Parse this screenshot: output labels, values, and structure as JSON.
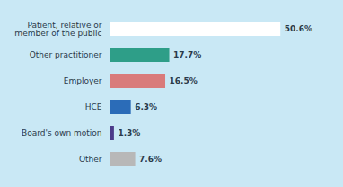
{
  "chart_data": {
    "type": "bar",
    "orientation": "horizontal",
    "categories": [
      "Patient, relative or\nmember of the public",
      "Other practitioner",
      "Employer",
      "HCE",
      "Board's own motion",
      "Other"
    ],
    "values": [
      50.6,
      17.7,
      16.5,
      6.3,
      1.3,
      7.6
    ],
    "value_labels": [
      "50.6%",
      "17.7%",
      "16.5%",
      "6.3%",
      "1.3%",
      "7.6%"
    ],
    "colors": [
      "#ffffff",
      "#2e9e88",
      "#d97b7b",
      "#2b6cb8",
      "#4b3a8a",
      "#b8b8b8"
    ],
    "xlim": [
      0,
      58
    ],
    "data_labels": true,
    "tick_labels": "y",
    "grid": false
  }
}
